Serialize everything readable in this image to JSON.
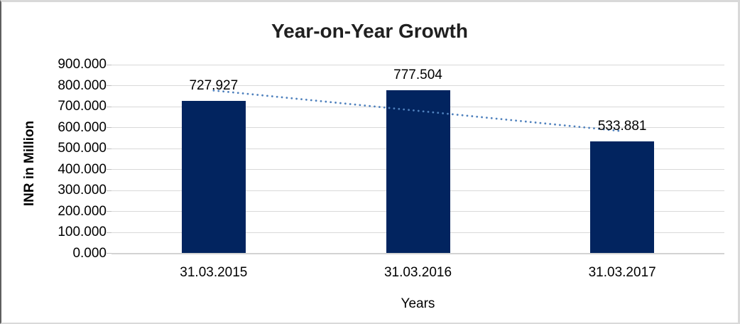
{
  "frame": {
    "background": "#ffffff",
    "border_color": "#d9d9d9"
  },
  "chart_data": {
    "type": "bar",
    "title": "Year-on-Year Growth",
    "categories": [
      "31.03.2015",
      "31.03.2016",
      "31.03.2017"
    ],
    "values": [
      727.927,
      777.504,
      533.881
    ],
    "data_labels": [
      "727.927",
      "777.504",
      "533.881"
    ],
    "xlabel": "Years",
    "ylabel": "INR in Million",
    "ylim": [
      0,
      900
    ],
    "ytick_step": 100,
    "ytick_labels": [
      "0.000",
      "100.000",
      "200.000",
      "300.000",
      "400.000",
      "500.000",
      "600.000",
      "700.000",
      "800.000",
      "900.000"
    ],
    "grid": true,
    "legend": false,
    "bar_color": "#02245f",
    "gridline_color": "#d9d9d9",
    "axis_text_color": "#000000",
    "title_color": "#1f1f1f",
    "trendline": {
      "type": "linear",
      "style": "dotted",
      "color": "#4f81bd"
    }
  }
}
